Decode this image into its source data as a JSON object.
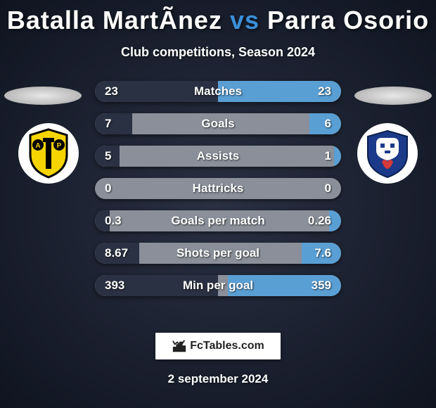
{
  "header": {
    "player1": "Batalla MartÃ­nez",
    "vs": "vs",
    "player2": "Parra Osorio",
    "subtitle": "Club competitions, Season 2024",
    "title_fontsize": 36,
    "subtitle_fontsize": 18,
    "vs_color": "#3a8fd8"
  },
  "colors": {
    "bg_outer": "#0f1420",
    "bg_inner": "#2a3142",
    "bar_track": "#8a8f99",
    "bar_left": "#2a3142",
    "bar_right": "#5a9fd4",
    "text": "#ffffff"
  },
  "crests": {
    "left": {
      "circle_fill": "#ffffff",
      "shield_fill": "#f5d400",
      "shield_stroke": "#000000",
      "letters": "AP"
    },
    "right": {
      "circle_fill": "#ffffff",
      "shield_fill": "#1c3a8a",
      "mask_fill": "#ffffff",
      "flame_fill": "#d63a3a"
    }
  },
  "stats": [
    {
      "label": "Matches",
      "left_val": "23",
      "right_val": "23",
      "left_pct": 50,
      "right_pct": 50
    },
    {
      "label": "Goals",
      "left_val": "7",
      "right_val": "6",
      "left_pct": 15,
      "right_pct": 13
    },
    {
      "label": "Assists",
      "left_val": "5",
      "right_val": "1",
      "left_pct": 10,
      "right_pct": 3
    },
    {
      "label": "Hattricks",
      "left_val": "0",
      "right_val": "0",
      "left_pct": 0,
      "right_pct": 0
    },
    {
      "label": "Goals per match",
      "left_val": "0.3",
      "right_val": "0.26",
      "left_pct": 6,
      "right_pct": 5
    },
    {
      "label": "Shots per goal",
      "left_val": "8.67",
      "right_val": "7.6",
      "left_pct": 18,
      "right_pct": 16
    },
    {
      "label": "Min per goal",
      "left_val": "393",
      "right_val": "359",
      "left_pct": 50,
      "right_pct": 46
    }
  ],
  "footer": {
    "brand": "FcTables.com",
    "date": "2 september 2024"
  }
}
